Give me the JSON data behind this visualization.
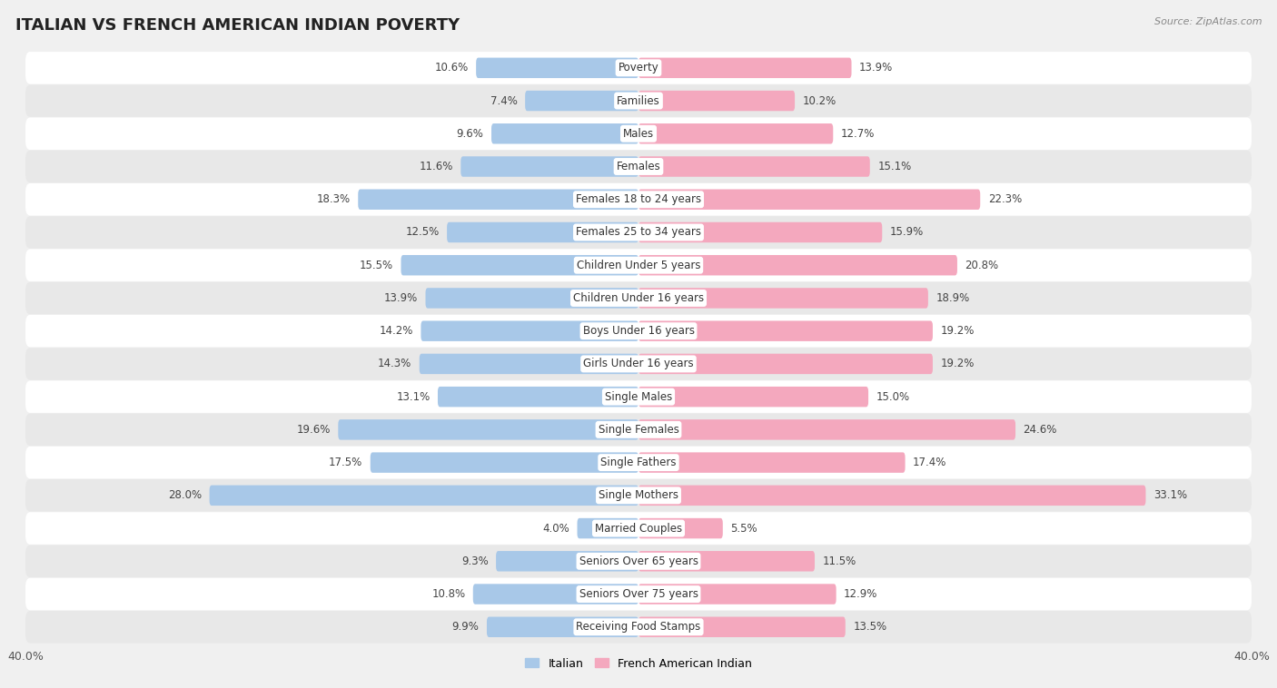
{
  "title": "ITALIAN VS FRENCH AMERICAN INDIAN POVERTY",
  "source": "Source: ZipAtlas.com",
  "categories": [
    "Poverty",
    "Families",
    "Males",
    "Females",
    "Females 18 to 24 years",
    "Females 25 to 34 years",
    "Children Under 5 years",
    "Children Under 16 years",
    "Boys Under 16 years",
    "Girls Under 16 years",
    "Single Males",
    "Single Females",
    "Single Fathers",
    "Single Mothers",
    "Married Couples",
    "Seniors Over 65 years",
    "Seniors Over 75 years",
    "Receiving Food Stamps"
  ],
  "italian_values": [
    10.6,
    7.4,
    9.6,
    11.6,
    18.3,
    12.5,
    15.5,
    13.9,
    14.2,
    14.3,
    13.1,
    19.6,
    17.5,
    28.0,
    4.0,
    9.3,
    10.8,
    9.9
  ],
  "french_values": [
    13.9,
    10.2,
    12.7,
    15.1,
    22.3,
    15.9,
    20.8,
    18.9,
    19.2,
    19.2,
    15.0,
    24.6,
    17.4,
    33.1,
    5.5,
    11.5,
    12.9,
    13.5
  ],
  "italian_color": "#a8c8e8",
  "french_color": "#f4a8be",
  "italian_label": "Italian",
  "french_label": "French American Indian",
  "xlim": 40.0,
  "bar_height": 0.62,
  "background_color": "#f0f0f0",
  "row_bg_color": "#ffffff",
  "alt_row_bg_color": "#e8e8e8",
  "title_fontsize": 13,
  "label_fontsize": 8.5,
  "tick_fontsize": 9,
  "value_fontsize": 8.5
}
